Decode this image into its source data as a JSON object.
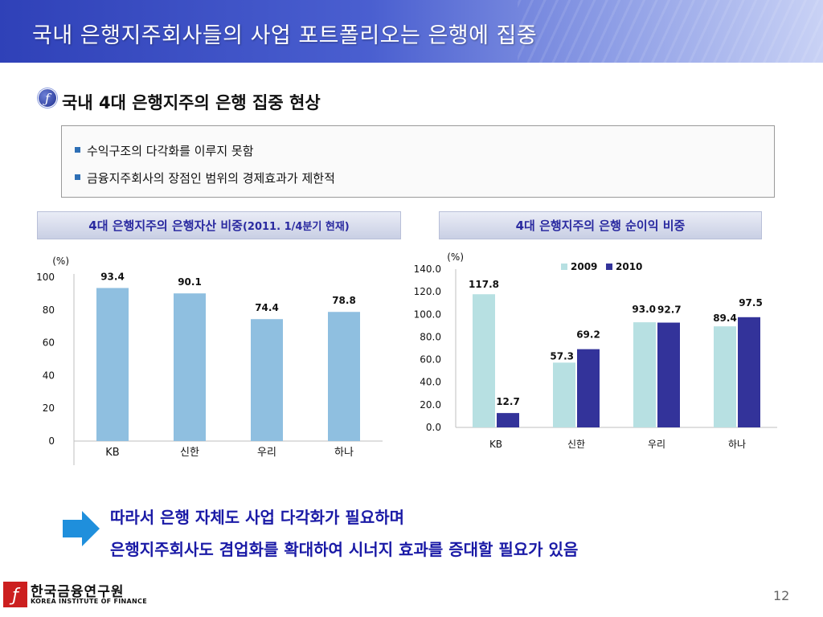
{
  "slide": {
    "title": "국내 은행지주회사들의 사업 포트폴리오는 은행에 집중",
    "section_heading": "국내 4대 은행지주의 은행 집중 현상",
    "bullets": [
      "수익구조의 다각화를 이루지 못함",
      "금융지주회사의 장점인 범위의 경제효과가 제한적"
    ],
    "conclusion_lines": [
      "따라서 은행 자체도 사업 다각화가 필요하며",
      "은행지주회사도 겸업화를 확대하여 시너지 효과를 증대할 필요가 있음"
    ],
    "logo": {
      "korean": "한국금융연구원",
      "english": "KOREA INSTITUTE OF FINANCE"
    },
    "page_number": "12",
    "colors": {
      "title_bar": "#2f41b8",
      "heading_text": "#2a2aa0",
      "conclusion_text": "#1a1aa6",
      "bar_light": "#8fbfe0",
      "series_2009": "#b7e0e2",
      "series_2010": "#33339a",
      "arrow": "#1f8fdc",
      "logo_red": "#cc1f1f"
    },
    "icons": [
      "section-bullet-icon",
      "arrow-right-icon",
      "logo-mark-icon"
    ]
  },
  "charts": {
    "left": {
      "header_main": "4대 은행지주의 은행자산 비중",
      "header_note": "(2011. 1/4분기 현재)"
    },
    "right": {
      "header_main": "4대 은행지주의 은행 순이익 비중"
    }
  },
  "chart_data": [
    {
      "type": "bar",
      "title": "4대 은행지주의 은행자산 비중(2011. 1/4분기 현재)",
      "ylabel": "(%)",
      "categories": [
        "KB",
        "신한",
        "우리",
        "하나"
      ],
      "values": [
        93.4,
        90.1,
        74.4,
        78.8
      ],
      "value_labels": [
        "93.4",
        "90.1",
        "74.4",
        "78.8"
      ],
      "ylim": [
        0,
        100
      ],
      "yticks": [
        0,
        20,
        40,
        60,
        80,
        100
      ],
      "ytick_labels": [
        "0",
        "20",
        "40",
        "60",
        "80",
        "100"
      ],
      "grid": false,
      "legend": "none"
    },
    {
      "type": "bar",
      "title": "4대 은행지주의 은행 순이익 비중",
      "ylabel": "(%)",
      "categories": [
        "KB",
        "신한",
        "우리",
        "하나"
      ],
      "series": [
        {
          "name": "2009",
          "values": [
            117.8,
            57.3,
            93.0,
            89.4
          ],
          "value_labels": [
            "117.8",
            "57.3",
            "93.0",
            "89.4"
          ]
        },
        {
          "name": "2010",
          "values": [
            12.7,
            69.2,
            92.7,
            97.5
          ],
          "value_labels": [
            "12.7",
            "69.2",
            "92.7",
            "97.5"
          ]
        }
      ],
      "ylim": [
        0,
        140
      ],
      "yticks": [
        0,
        20,
        40,
        60,
        80,
        100,
        120,
        140
      ],
      "ytick_labels": [
        "0.0",
        "20.0",
        "40.0",
        "60.0",
        "80.0",
        "100.0",
        "120.0",
        "140.0"
      ],
      "grid": false,
      "legend": "top"
    }
  ]
}
